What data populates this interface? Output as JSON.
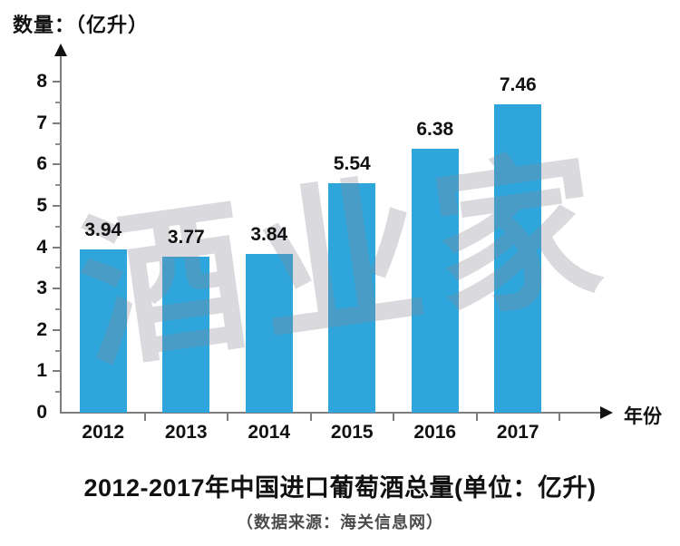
{
  "page": {
    "background": "#ffffff"
  },
  "chart_data": {
    "type": "bar",
    "title": "2012-2017年中国进口葡萄酒总量(单位：亿升)",
    "source_note": "（数据来源：海关信息网）",
    "y_axis_title": "数量：（亿升）",
    "x_axis_label": "年份",
    "categories": [
      "2012",
      "2013",
      "2014",
      "2015",
      "2016",
      "2017"
    ],
    "values": [
      3.94,
      3.77,
      3.84,
      5.54,
      6.38,
      7.46
    ],
    "value_labels": [
      "3.94",
      "3.77",
      "3.84",
      "5.54",
      "6.38",
      "7.46"
    ],
    "ylim": [
      0,
      8
    ],
    "yticks": [
      0,
      1,
      2,
      3,
      4,
      5,
      6,
      7,
      8
    ],
    "minor_ytick_interval": 0.5,
    "grid": false,
    "legend": "none",
    "bar_color": "#2ea6dc",
    "axis_color": "#7d7d7d",
    "text_color": "#111111",
    "watermark": "酒业家"
  }
}
